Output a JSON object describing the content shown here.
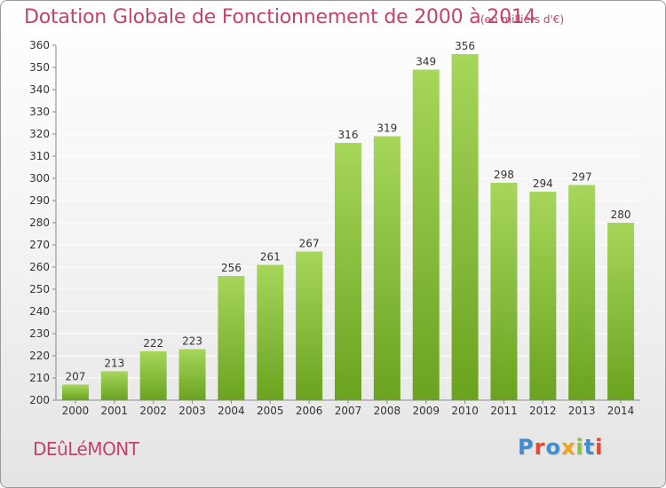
{
  "header": {
    "title": "Dotation Globale de Fonctionnement de 2000 à 2014",
    "unit": "(en milliers d'€)"
  },
  "footer": {
    "commune": "DEûLéMONT",
    "logo": "Proxiti",
    "logo_colors": [
      "#3a8fd6",
      "#e8472a",
      "#3a8fd6",
      "#f2a31c",
      "#8cc63f",
      "#3a8fd6",
      "#e8472a"
    ]
  },
  "colors": {
    "title": "#c4436b",
    "bar_light": "#a6d65a",
    "bar_dark": "#6aa320",
    "grid": "#ffffff",
    "axis_text": "#333333"
  },
  "chart_data": {
    "type": "bar",
    "title": "Dotation Globale de Fonctionnement de 2000 à 2014",
    "xlabel": "",
    "ylabel": "",
    "categories": [
      "2000",
      "2001",
      "2002",
      "2003",
      "2004",
      "2005",
      "2006",
      "2007",
      "2008",
      "2009",
      "2010",
      "2011",
      "2012",
      "2013",
      "2014"
    ],
    "values": [
      207,
      213,
      222,
      223,
      256,
      261,
      267,
      316,
      319,
      349,
      356,
      298,
      294,
      297,
      280
    ],
    "ylim": [
      200,
      360
    ],
    "yticks": [
      200,
      210,
      220,
      230,
      240,
      250,
      260,
      270,
      280,
      290,
      300,
      310,
      320,
      330,
      340,
      350,
      360
    ],
    "grid": true,
    "legend": "none"
  }
}
